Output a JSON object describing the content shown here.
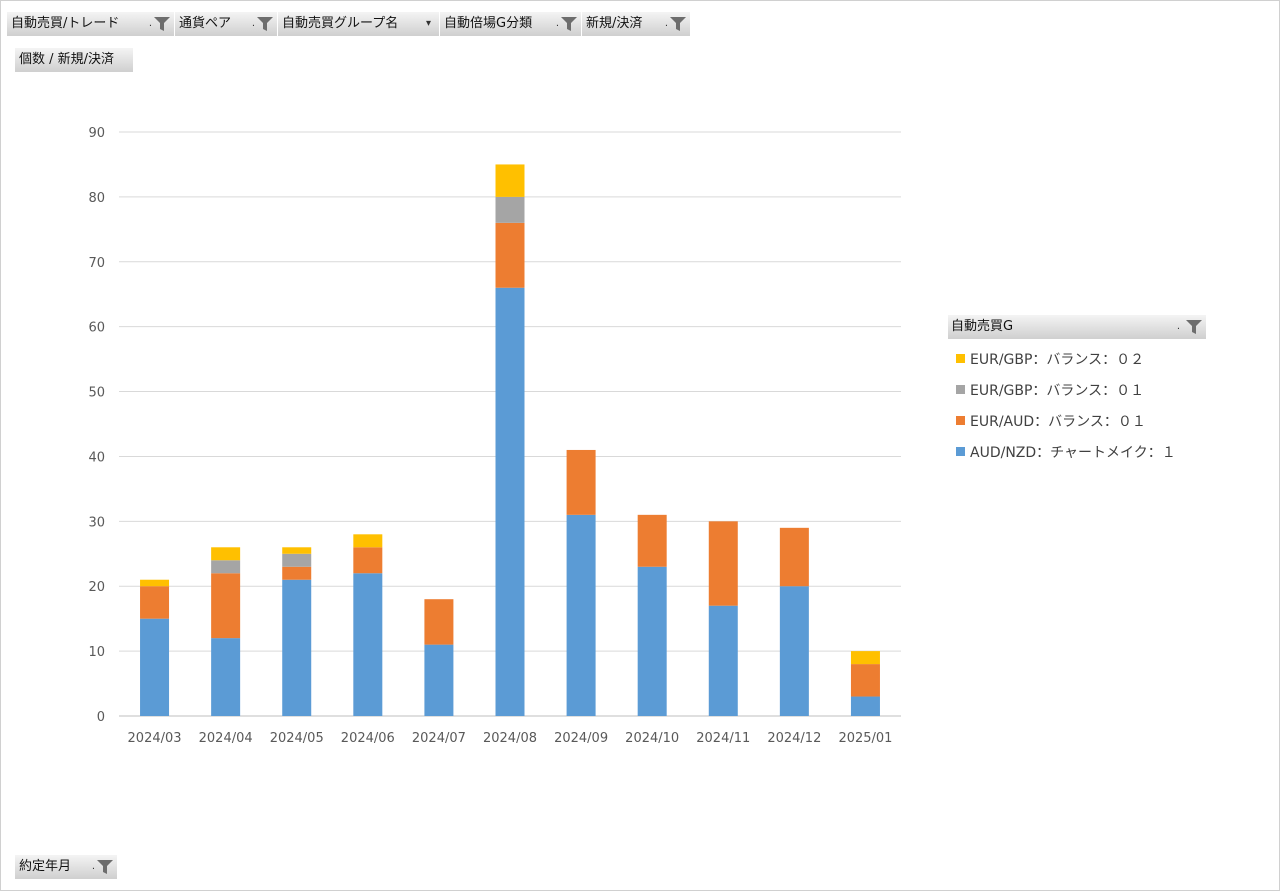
{
  "filters": {
    "top": [
      {
        "label": "自動売買/トレード"
      },
      {
        "label": "通貨ペア"
      },
      {
        "label": "自動売買グループ名"
      },
      {
        "label": "自動倍場G分類"
      },
      {
        "label": "新規/決済"
      }
    ],
    "values_label": "個数 / 新規/決済",
    "axis_field": "約定年月",
    "legend_field": "自動売買G"
  },
  "chart_data": {
    "type": "bar",
    "stacked": true,
    "categories": [
      "2024/03",
      "2024/04",
      "2024/05",
      "2024/06",
      "2024/07",
      "2024/08",
      "2024/09",
      "2024/10",
      "2024/11",
      "2024/12",
      "2025/01"
    ],
    "ylim": [
      0,
      90
    ],
    "yticks": [
      0,
      10,
      20,
      30,
      40,
      50,
      60,
      70,
      80,
      90
    ],
    "grid": true,
    "legend_position": "right",
    "series": [
      {
        "name": "AUD/NZD：チャートメイク：１",
        "color": "#5b9bd5",
        "values": [
          15,
          12,
          21,
          22,
          11,
          66,
          31,
          23,
          17,
          20,
          3
        ]
      },
      {
        "name": "EUR/AUD：バランス：０１",
        "color": "#ed7d31",
        "values": [
          5,
          10,
          2,
          4,
          7,
          10,
          10,
          8,
          13,
          9,
          5
        ]
      },
      {
        "name": "EUR/GBP：バランス：０１",
        "color": "#a5a5a5",
        "values": [
          0,
          2,
          2,
          0,
          0,
          4,
          0,
          0,
          0,
          0,
          0
        ]
      },
      {
        "name": "EUR/GBP：バランス：０２",
        "color": "#ffc000",
        "values": [
          1,
          2,
          1,
          2,
          0,
          5,
          0,
          0,
          0,
          0,
          2
        ]
      }
    ]
  }
}
